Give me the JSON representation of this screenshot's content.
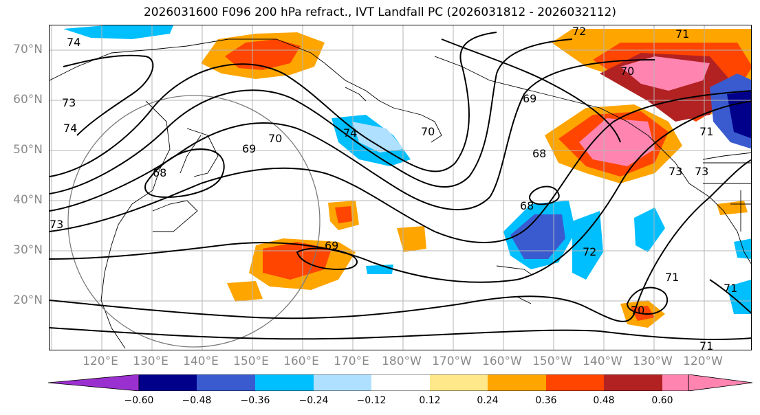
{
  "title": "2026031600 F096 200 hPa refract., IVT Landfall PC (2026031812 - 2026032112)",
  "map": {
    "latitude_labels": [
      "70°N",
      "60°N",
      "50°N",
      "40°N",
      "30°N",
      "20°N"
    ],
    "longitude_labels": [
      "120°E",
      "130°E",
      "140°E",
      "150°E",
      "160°E",
      "170°E",
      "180°W",
      "170°W",
      "160°W",
      "150°W",
      "140°W",
      "130°W",
      "120°W"
    ],
    "contour_labels": [
      "74",
      "72",
      "71",
      "73",
      "70",
      "74",
      "69",
      "74",
      "70",
      "68",
      "69",
      "70",
      "69",
      "71",
      "68",
      "68",
      "73",
      "73",
      "72",
      "71",
      "71",
      "70",
      "71",
      "73"
    ],
    "label_color": "#8a8a8a"
  },
  "colorbar": {
    "ticks": [
      "−0.60",
      "−0.48",
      "−0.36",
      "−0.24",
      "−0.12",
      "0.12",
      "0.24",
      "0.36",
      "0.48",
      "0.60"
    ],
    "colors": [
      "#9b30d0",
      "#00008b",
      "#3a5bd0",
      "#00bfff",
      "#b0e0ff",
      "#ffffff",
      "#ffe88a",
      "#ffa500",
      "#ff4500",
      "#b22222",
      "#ff85b0",
      "#ff85b0"
    ]
  }
}
